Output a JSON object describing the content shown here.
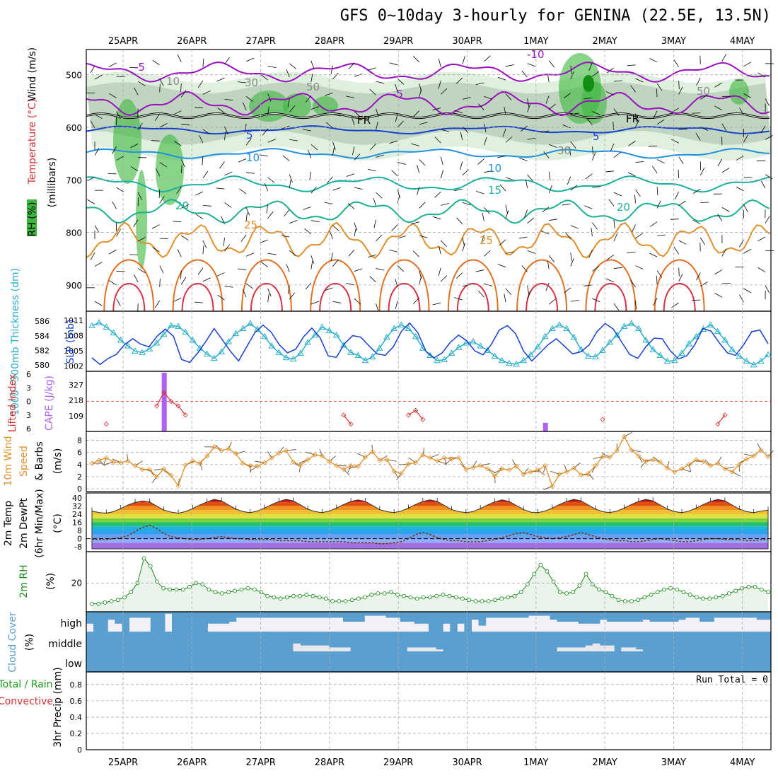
{
  "title": "GFS 0~10day 3-hourly for GENINA (22.5E, 13.5N)",
  "dates": [
    "25APR",
    "26APR",
    "27APR",
    "28APR",
    "29APR",
    "30APR",
    "1MAY",
    "2MAY",
    "3MAY",
    "4MAY"
  ],
  "colors": {
    "rh": "#3cb73c",
    "temp_axis": "#d83030",
    "purple": "#9a10c0",
    "blue": "#1840d0",
    "cyan": "#2ab0c8",
    "orange": "#e0902a",
    "cloud": "#5a9fcf",
    "cape": "#b060f0"
  },
  "chart_data": [
    {
      "type": "heatmap",
      "name": "upper",
      "ylabel_parts": [
        "RH (%)",
        "Temperature (°C)",
        "Wind (m/s)"
      ],
      "ylabel_units": "(millibars)",
      "yticks": [
        500,
        600,
        700,
        800,
        900
      ],
      "contour_labels": [
        "-10",
        "-5",
        "-5",
        "5",
        "5",
        "10",
        "10",
        "15",
        "20",
        "20",
        "25",
        "25",
        "30",
        "30",
        "50",
        "50",
        "10",
        "FR",
        "FR"
      ]
    },
    {
      "type": "line",
      "name": "slp",
      "ylabel_left": "1000~500mb Thickness (dm)",
      "ylabel_right": "SLP (mb)",
      "left_ticks": [
        580,
        582,
        584,
        586
      ],
      "right_ticks": [
        1002,
        1005,
        1008,
        1011
      ],
      "series": [
        {
          "name": "SLP (mb)",
          "values": [
            1003.6,
            1002.3,
            1003.5,
            1004.3,
            1006.2,
            1007.4,
            1006.3,
            1005.8,
            1007.9,
            1009.3,
            1007.9,
            1003.3,
            1002.7,
            1004.6,
            1006.9,
            1009.4,
            1007.2,
            1004.9,
            1003.0,
            1005.8,
            1008.6,
            1010.1,
            1008.7,
            1006.2,
            1004.6,
            1005.3,
            1007.8,
            1009.5,
            1007.6,
            1004.0,
            1003.7,
            1006.4,
            1008.0,
            1007.7,
            1006.0,
            1004.4,
            1004.1,
            1005.8,
            1008.9,
            1010.5,
            1008.6,
            1004.9,
            1003.6,
            1004.6,
            1006.7,
            1008.1,
            1007.0,
            1005.0,
            1004.2,
            1006.2,
            1009.1,
            1010.0,
            1008.4,
            1004.9,
            1003.0,
            1004.6,
            1006.2,
            1007.4,
            1005.9,
            1004.4,
            1004.8,
            1006.1,
            1008.8,
            1010.4,
            1009.3,
            1006.8,
            1004.3,
            1003.5,
            1005.8,
            1007.5,
            1007.4,
            1005.0,
            1003.4,
            1004.0,
            1006.2,
            1009.4,
            1008.9,
            1006.6,
            1004.6,
            1004.1,
            1006.2,
            1008.8,
            1009.1,
            1006.4
          ]
        },
        {
          "name": "1000~500mb Thickness (dm)",
          "values": [
            585.4,
            585.8,
            585.2,
            584.4,
            583.4,
            582.6,
            581.9,
            581.7,
            582.2,
            583.0,
            584.2,
            585.4,
            585.3,
            584.5,
            583.4,
            582.3,
            581.5,
            580.9,
            581.8,
            583.2,
            584.3,
            585.0,
            585.7,
            584.9,
            583.9,
            582.6,
            581.7,
            581.0,
            580.8,
            581.6,
            583.1,
            584.1,
            585.2,
            584.7,
            584.1,
            582.7,
            581.7,
            581.3,
            580.6,
            581.1,
            582.3,
            583.8,
            585.0,
            585.5,
            585.0,
            583.9,
            582.3,
            581.3,
            580.6,
            580.7,
            581.6,
            582.4,
            583.0,
            583.2,
            582.6,
            582.0,
            581.2,
            580.6,
            580.2,
            580.1,
            580.6,
            581.4,
            582.5,
            583.9,
            585.0,
            585.5,
            585.0,
            583.8,
            582.1,
            581.2,
            581.1,
            582.0,
            583.1,
            584.1,
            585.3,
            585.7,
            585.0,
            583.4,
            582.1,
            581.3,
            580.5,
            580.6,
            581.6,
            582.9,
            583.9,
            584.9,
            585.5,
            584.6,
            583.4,
            582.1,
            581.2,
            580.5,
            580.0,
            580.5,
            581.4
          ]
        }
      ]
    },
    {
      "type": "bar",
      "name": "lifted-cape",
      "ylabel_left": "Lifted Index",
      "ylabel_right": "CAPE (J/kg)",
      "left_ticks": [
        -6,
        -3,
        0,
        3,
        6
      ],
      "right_ticks": [
        109,
        218,
        327
      ],
      "lifted_index": [
        6,
        6,
        5,
        6,
        6,
        6,
        6,
        6,
        6,
        1,
        -2,
        0,
        1,
        3,
        6,
        6,
        6,
        6,
        6,
        6,
        6,
        6,
        6,
        6,
        6,
        6,
        6,
        6,
        6,
        6,
        6,
        6,
        6,
        6,
        6,
        3,
        5,
        6,
        6,
        6,
        6,
        6,
        6,
        6,
        3,
        2,
        4,
        6,
        6,
        6,
        6,
        6,
        6,
        6,
        6,
        6,
        6,
        6,
        6,
        6,
        6,
        6,
        6,
        6,
        6,
        6,
        6,
        6,
        6,
        6,
        6,
        4,
        6,
        6,
        6,
        6,
        6,
        6,
        6,
        6,
        6,
        6,
        6,
        6,
        6,
        6,
        6,
        5,
        3,
        6,
        6,
        6,
        6,
        6,
        6
      ],
      "cape_bars": [
        {
          "index": 10,
          "value": 410
        },
        {
          "index": 63,
          "value": 60
        }
      ]
    },
    {
      "type": "line",
      "name": "wind10m",
      "ylabel_parts": [
        "10m Wind",
        "Speed",
        "& Barbs"
      ],
      "ylabel_units": "(m/s)",
      "yticks": [
        0,
        2,
        4,
        6,
        8
      ],
      "values": [
        4.2,
        4.7,
        5.1,
        4.4,
        4.3,
        4.6,
        3.8,
        3.2,
        3.2,
        2.0,
        3.3,
        2.2,
        0.5,
        3.9,
        4.6,
        4.2,
        5.4,
        6.9,
        6.3,
        6.6,
        5.8,
        4.2,
        3.8,
        3.7,
        4.3,
        5.1,
        5.9,
        6.3,
        4.4,
        3.9,
        4.8,
        5.6,
        5.4,
        4.5,
        3.8,
        3.2,
        3.8,
        3.7,
        5.2,
        6.1,
        4.7,
        4.8,
        2.9,
        2.5,
        4.1,
        4.3,
        5.6,
        5.1,
        4.6,
        5.1,
        4.9,
        5.1,
        3.2,
        3.5,
        3.8,
        3.3,
        2.1,
        3.3,
        3.1,
        3.7,
        2.4,
        2.8,
        3.1,
        3.8,
        0.4,
        2.4,
        2.8,
        3.4,
        2.3,
        2.5,
        3.8,
        5.3,
        5.2,
        6.3,
        8.6,
        6.4,
        5.4,
        4.5,
        4.8,
        4.4,
        3.4,
        2.8,
        3.3,
        4.0,
        4.8,
        4.5,
        3.8,
        4.2,
        3.3,
        2.8,
        4.0,
        4.9,
        5.4,
        6.4,
        5.3
      ]
    },
    {
      "type": "area",
      "name": "temp2m",
      "ylabel_parts": [
        "2m Temp",
        "2m DewPt",
        "(6hr Min/Max)"
      ],
      "ylabel_units": "(°C)",
      "yticks": [
        -8,
        0,
        8,
        16,
        24,
        32,
        40
      ],
      "temp": [
        27,
        25.5,
        25,
        26.5,
        29.5,
        33,
        35.5,
        37,
        36,
        32,
        28,
        26,
        25,
        26.5,
        29.5,
        33,
        36,
        38.5,
        37,
        33,
        29,
        26.5,
        25.5,
        27,
        30,
        33.5,
        36.5,
        38.5,
        37,
        33,
        29,
        26.5,
        25.5,
        27,
        30,
        33.5,
        36.5,
        38,
        36.5,
        32.5,
        28.5,
        26.5,
        25.5,
        27,
        30,
        33.5,
        36.5,
        38,
        36.5,
        32.5,
        28.5,
        26.5,
        25.5,
        26.5,
        29.5,
        33,
        36,
        38,
        36.5,
        32.5,
        28.5,
        26,
        25.5,
        27,
        30,
        33.5,
        36.5,
        38.5,
        37,
        33,
        29,
        26.5,
        25.5,
        27,
        30,
        33.5,
        36.5,
        38.5,
        37,
        33,
        29,
        26.5,
        25.5,
        27,
        30,
        33.5,
        36.5,
        38.5,
        37,
        33,
        29,
        26.5,
        25.5,
        27,
        28
      ],
      "dewpt": [
        -1,
        -1,
        -1,
        0,
        1,
        3,
        7,
        11,
        13,
        10,
        5,
        2,
        1,
        0,
        -1,
        -1,
        0,
        1,
        2,
        1,
        0,
        0,
        -1,
        -1,
        -1,
        -1,
        -2,
        -2,
        -2,
        -2,
        -3,
        -3,
        -3,
        -3,
        -3,
        -3,
        -4,
        -4,
        -4,
        -4,
        -5,
        -5,
        -4,
        -3,
        0,
        4,
        6,
        4,
        1,
        -1,
        -2,
        -2,
        -3,
        -3,
        -3,
        -2,
        -1,
        1,
        3,
        5,
        6,
        4,
        2,
        1,
        0,
        1,
        2,
        4,
        6,
        4,
        2,
        0,
        -1,
        -2,
        -2,
        -3,
        -3,
        -2,
        -1,
        0,
        -1,
        -2,
        -3,
        -3,
        -2,
        -1,
        0,
        0,
        -1,
        -1,
        -1,
        -2,
        -2,
        -1,
        -1
      ]
    },
    {
      "type": "area",
      "name": "rh2m",
      "ylabel": "2m RH",
      "ylabel_units": "(%)",
      "yticks": [
        20
      ],
      "values": [
        4,
        4,
        5,
        6,
        7,
        9,
        13,
        20,
        39,
        33,
        21,
        16,
        15,
        15,
        15,
        17,
        20,
        19,
        15,
        13,
        12,
        13,
        14,
        15,
        16,
        15,
        13,
        10,
        9,
        8,
        9,
        10,
        10,
        11,
        10,
        9,
        8,
        6,
        6,
        6,
        7,
        8,
        9,
        11,
        12,
        12,
        13,
        11,
        10,
        9,
        8,
        9,
        9,
        10,
        11,
        10,
        9,
        8,
        7,
        6,
        6,
        6,
        7,
        8,
        9,
        10,
        13,
        19,
        27,
        34,
        29,
        21,
        13,
        12,
        13,
        18,
        27,
        19,
        15,
        13,
        10,
        7,
        6,
        6,
        7,
        9,
        11,
        13,
        15,
        16,
        15,
        13,
        11,
        9,
        8,
        8,
        9,
        10,
        12,
        14,
        16,
        17,
        17,
        15,
        13
      ]
    },
    {
      "type": "bar",
      "name": "cloud",
      "ylabel": "Cloud Cover",
      "ylabel_units": "(%)",
      "levels": [
        "high",
        "middle",
        "low"
      ],
      "high": [
        0.6,
        1,
        1,
        0.4,
        0.6,
        1,
        0.3,
        0.3,
        0.3,
        1,
        1,
        0.1,
        1,
        1,
        1,
        1,
        1,
        0.6,
        0.6,
        0.6,
        0.5,
        0.3,
        0.3,
        0.3,
        0.3,
        0.3,
        0.3,
        0.3,
        0.3,
        0.3,
        0.3,
        0.3,
        0.3,
        0.3,
        0.3,
        0.3,
        0.5,
        0.5,
        0.5,
        0.2,
        0.2,
        0.2,
        0.3,
        0.3,
        0.5,
        0.5,
        0.6,
        0.6,
        1,
        1,
        0.6,
        1,
        0.6,
        1,
        0.4,
        0.7,
        0.3,
        0.3,
        0.3,
        0.3,
        0.3,
        0.3,
        0.2,
        0.2,
        0.2,
        0.4,
        0.5,
        0.5,
        0.5,
        0.6,
        0.6,
        0.6,
        0.4,
        0.5,
        0.5,
        0.5,
        0.5,
        0.5,
        0.4,
        0.5,
        0.5,
        0.5,
        0.5,
        0.4,
        0.3,
        0.3,
        0.5,
        0.5,
        0.3,
        0.3,
        0.3,
        0.3,
        0.3,
        0.3,
        0.4,
        0.4
      ],
      "middle": [
        0,
        0,
        0,
        0,
        0,
        0,
        0,
        0,
        0,
        0,
        0,
        0,
        0,
        0,
        0,
        0,
        0,
        0,
        0,
        0,
        0,
        0,
        0,
        0,
        0,
        0,
        0,
        0,
        0,
        0.4,
        0.3,
        0.3,
        0.3,
        0.3,
        0.2,
        0.2,
        0.2,
        0,
        0,
        0,
        0,
        0,
        0,
        0,
        0,
        0.2,
        0.2,
        0.2,
        0.2,
        0.1,
        0,
        0,
        0,
        0,
        0,
        0,
        0,
        0,
        0,
        0,
        0,
        0,
        0,
        0,
        0,
        0,
        0.2,
        0.2,
        0.2,
        0.2,
        0.3,
        0.4,
        0.3,
        0.3,
        0,
        0.2,
        0.2,
        0.1,
        0,
        0,
        0,
        0,
        0,
        0,
        0,
        0,
        0,
        0,
        0,
        0,
        0,
        0,
        0,
        0,
        0,
        0,
        0,
        0,
        0,
        0.9,
        0.9,
        0
      ]
    },
    {
      "type": "bar",
      "name": "precip",
      "ylabel_parts": [
        "Total / Rain",
        "Convective"
      ],
      "ylabel_units": "3hr Precip (mm)",
      "yticks": [
        0,
        0.2,
        0.4,
        0.6,
        0.8
      ],
      "run_total_label": "Run Total = 0",
      "values": []
    }
  ]
}
